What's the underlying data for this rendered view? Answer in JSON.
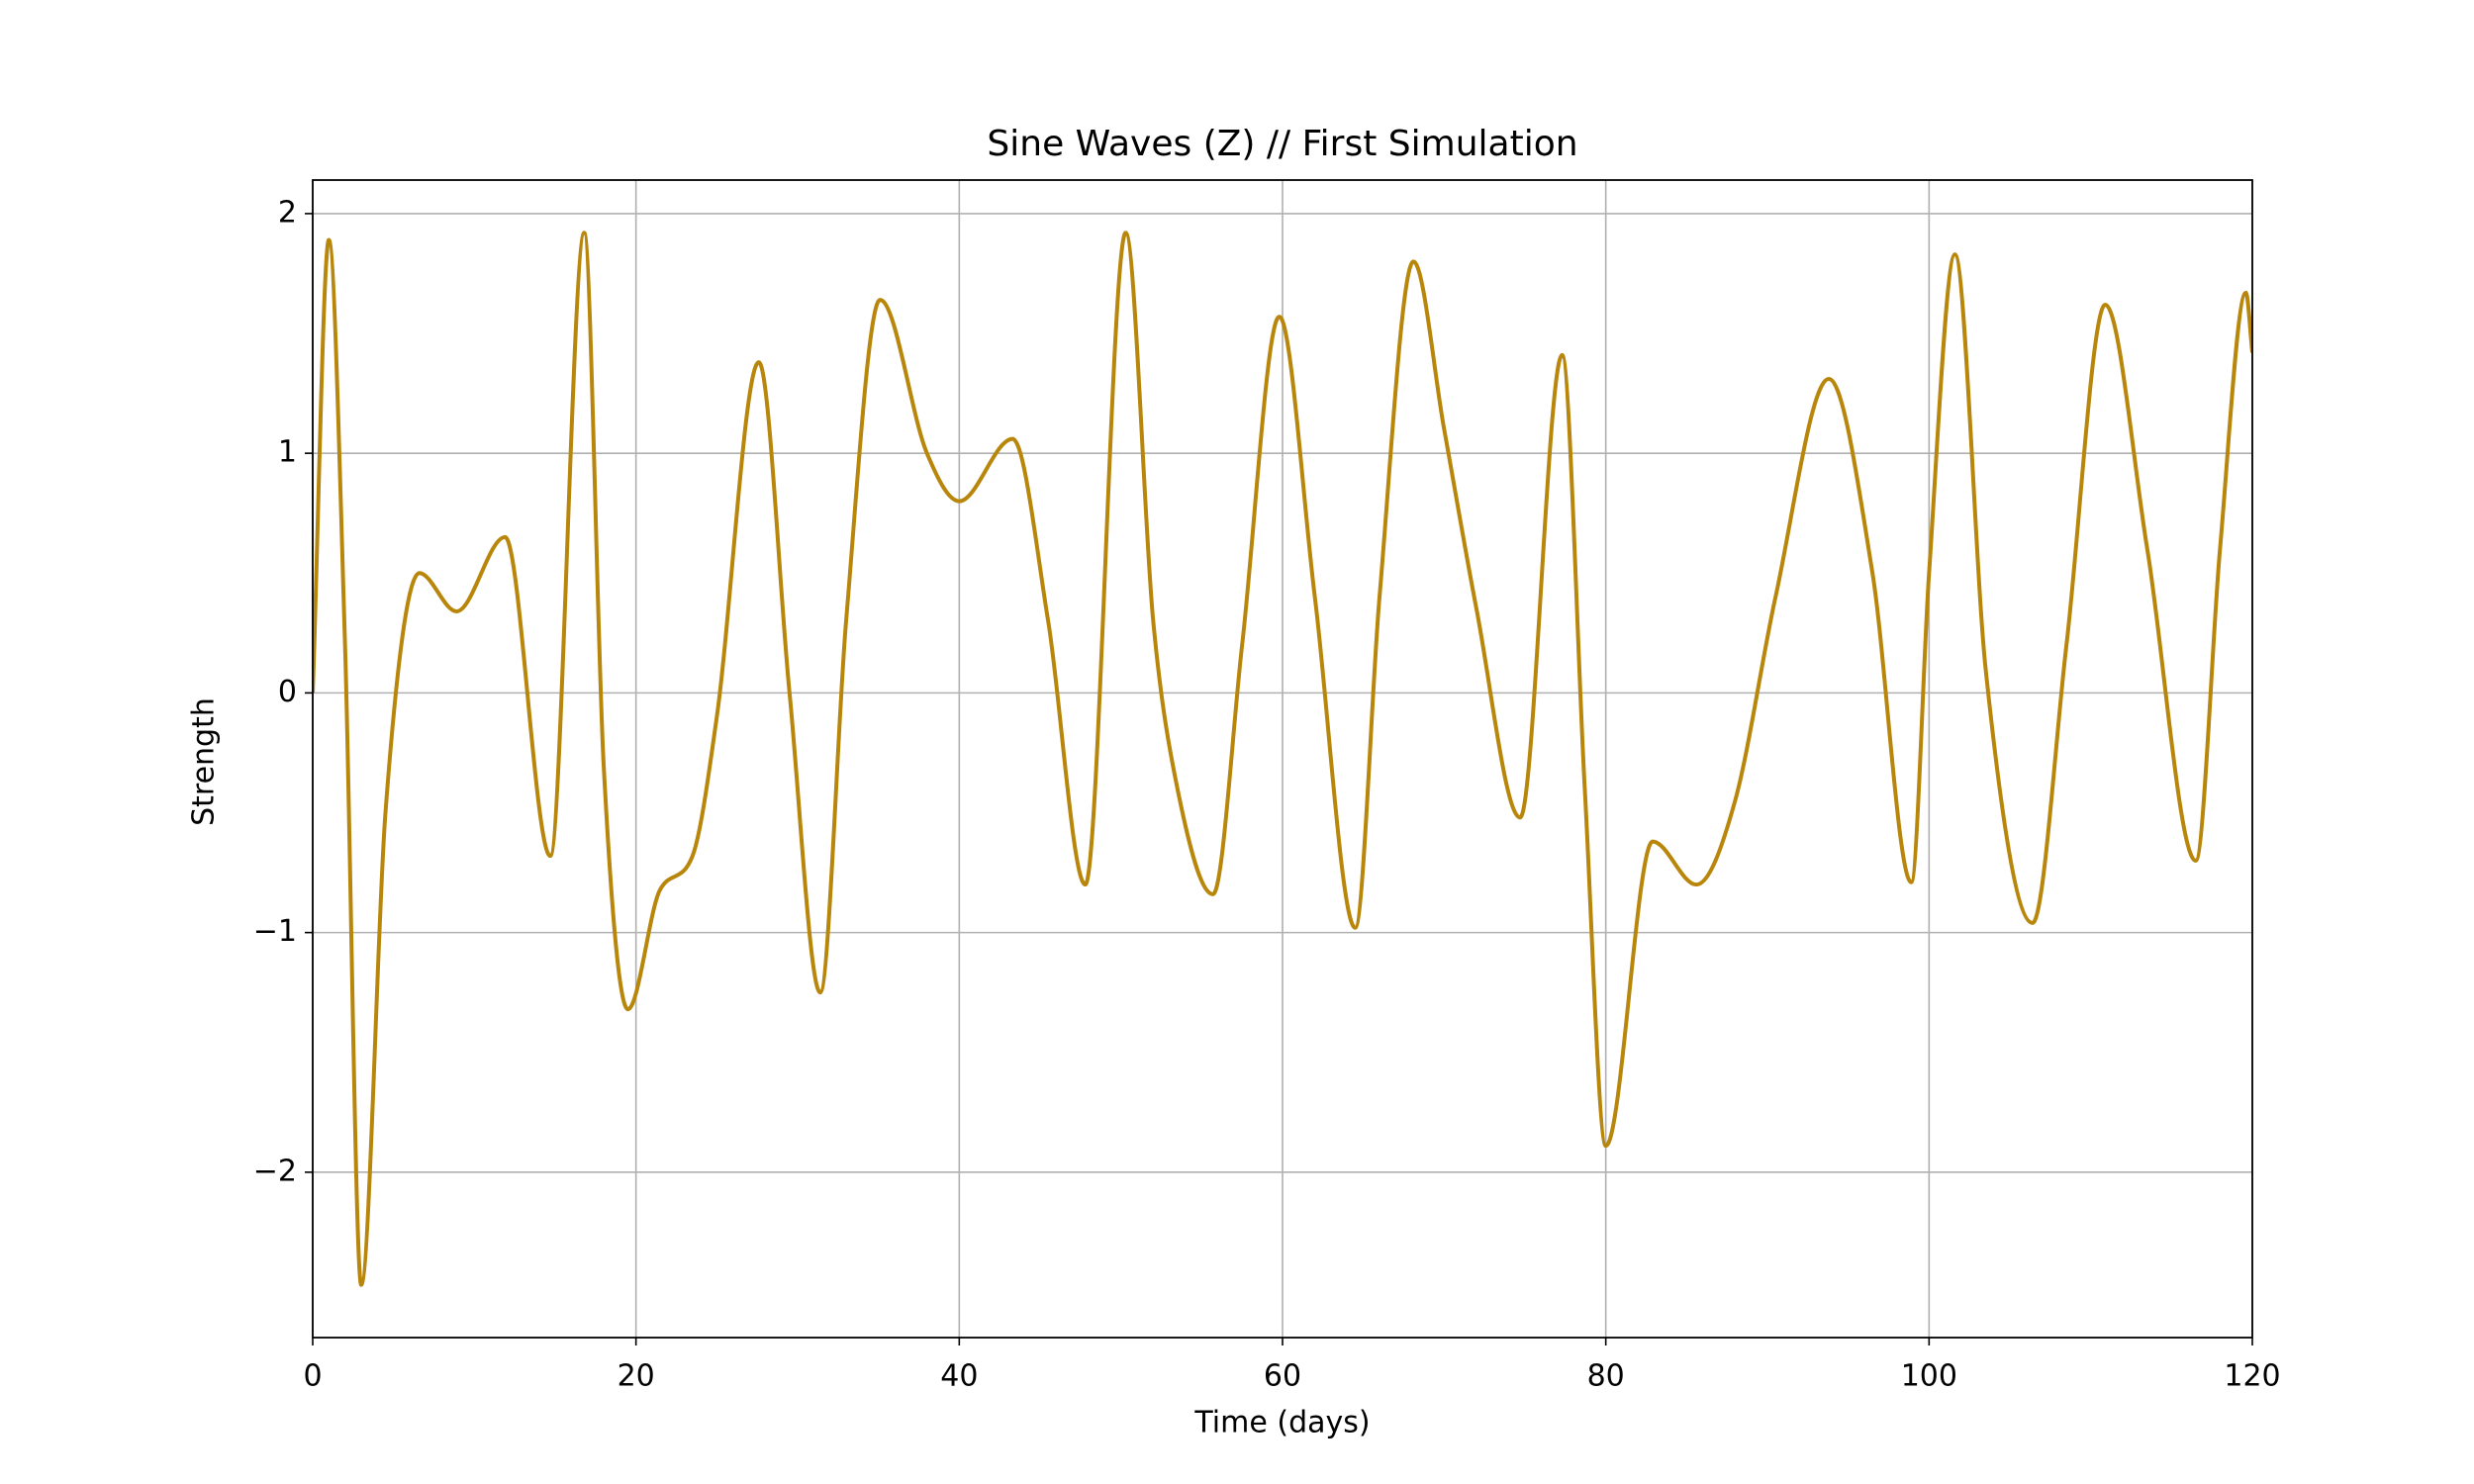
{
  "chart_data": {
    "type": "line",
    "title": "Sine Waves (Z) // First Simulation",
    "x_label": "Time (days)",
    "y_label": "Strength",
    "xlim": [
      0,
      120
    ],
    "ylim": [
      -2.69,
      2.14
    ],
    "xticks": [
      0,
      20,
      40,
      60,
      80,
      100,
      120
    ],
    "yticks": [
      {
        "value": -2,
        "label": "−2"
      },
      {
        "value": -1,
        "label": "−1"
      },
      0,
      1,
      2
    ],
    "grid": true,
    "series": [
      {
        "color": "#b8860b",
        "x": [
          0,
          1,
          2,
          3,
          4.5,
          6.6,
          8.9,
          11.9,
          14.7,
          16.8,
          18,
          19.5,
          21.5,
          23.5,
          25,
          27.6,
          29.5,
          31.4,
          33,
          35.1,
          38,
          40,
          43.3,
          45.5,
          47.8,
          50.3,
          52,
          53.5,
          55.7,
          57.5,
          59.8,
          62,
          64.5,
          66,
          68.1,
          70,
          72,
          74.7,
          77.3,
          78.7,
          80,
          82.9,
          85.6,
          88,
          90.5,
          93.8,
          96.5,
          98.9,
          100,
          101.6,
          103.5,
          106.4,
          108.5,
          110.9,
          113.5,
          116.5,
          118,
          119.6,
          120
        ],
        "values": [
          0,
          1.89,
          0.2,
          -2.47,
          -0.5,
          0.5,
          0.34,
          0.65,
          -0.68,
          1.92,
          -0.3,
          -1.32,
          -0.82,
          -0.68,
          -0.1,
          1.38,
          0.0,
          -1.25,
          0.3,
          1.64,
          1.0,
          0.8,
          1.06,
          0.3,
          -0.8,
          1.92,
          0.3,
          -0.4,
          -0.84,
          0.2,
          1.57,
          0.4,
          -0.98,
          0.4,
          1.8,
          1.1,
          0.35,
          -0.52,
          1.41,
          -0.4,
          -1.89,
          -0.62,
          -0.8,
          -0.45,
          0.4,
          1.31,
          0.5,
          -0.79,
          0.5,
          1.83,
          0.1,
          -0.96,
          0.2,
          1.62,
          0.6,
          -0.7,
          0.6,
          1.67,
          1.42
        ]
      }
    ]
  }
}
